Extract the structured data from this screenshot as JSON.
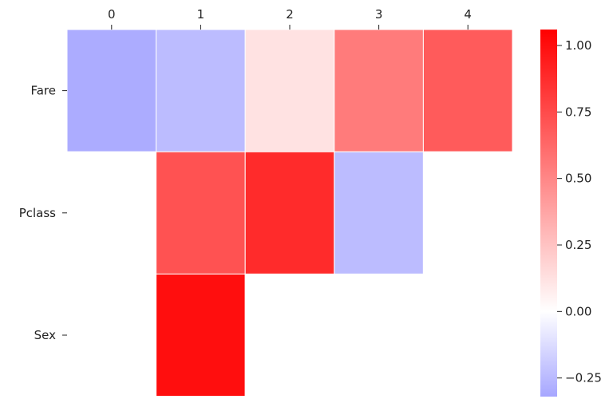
{
  "chart_data": {
    "type": "heatmap",
    "title": "",
    "xlabel": "",
    "ylabel": "",
    "x_categories": [
      "0",
      "1",
      "2",
      "3",
      "4"
    ],
    "y_categories": [
      "Fare",
      "Pclass",
      "Sex"
    ],
    "values": [
      [
        -0.3,
        -0.24,
        0.12,
        0.55,
        0.68
      ],
      [
        0.0,
        0.72,
        0.88,
        -0.24,
        0.0
      ],
      [
        0.0,
        1.0,
        0.0,
        0.0,
        0.0
      ]
    ],
    "grid": true,
    "x_axis_position": "top",
    "colorbar": {
      "vmin": -0.32,
      "vmax": 1.06,
      "ticks": [
        -0.25,
        0.0,
        0.25,
        0.5,
        0.75,
        1.0
      ],
      "tick_labels": [
        "−0.25",
        "0.00",
        "0.25",
        "0.50",
        "0.75",
        "1.00"
      ],
      "placement": "right"
    },
    "colors": {
      "negative": "#a6a6ff",
      "zero": "#ffffff",
      "positive": "#ff0000",
      "cell_border": "#ffffff"
    }
  }
}
